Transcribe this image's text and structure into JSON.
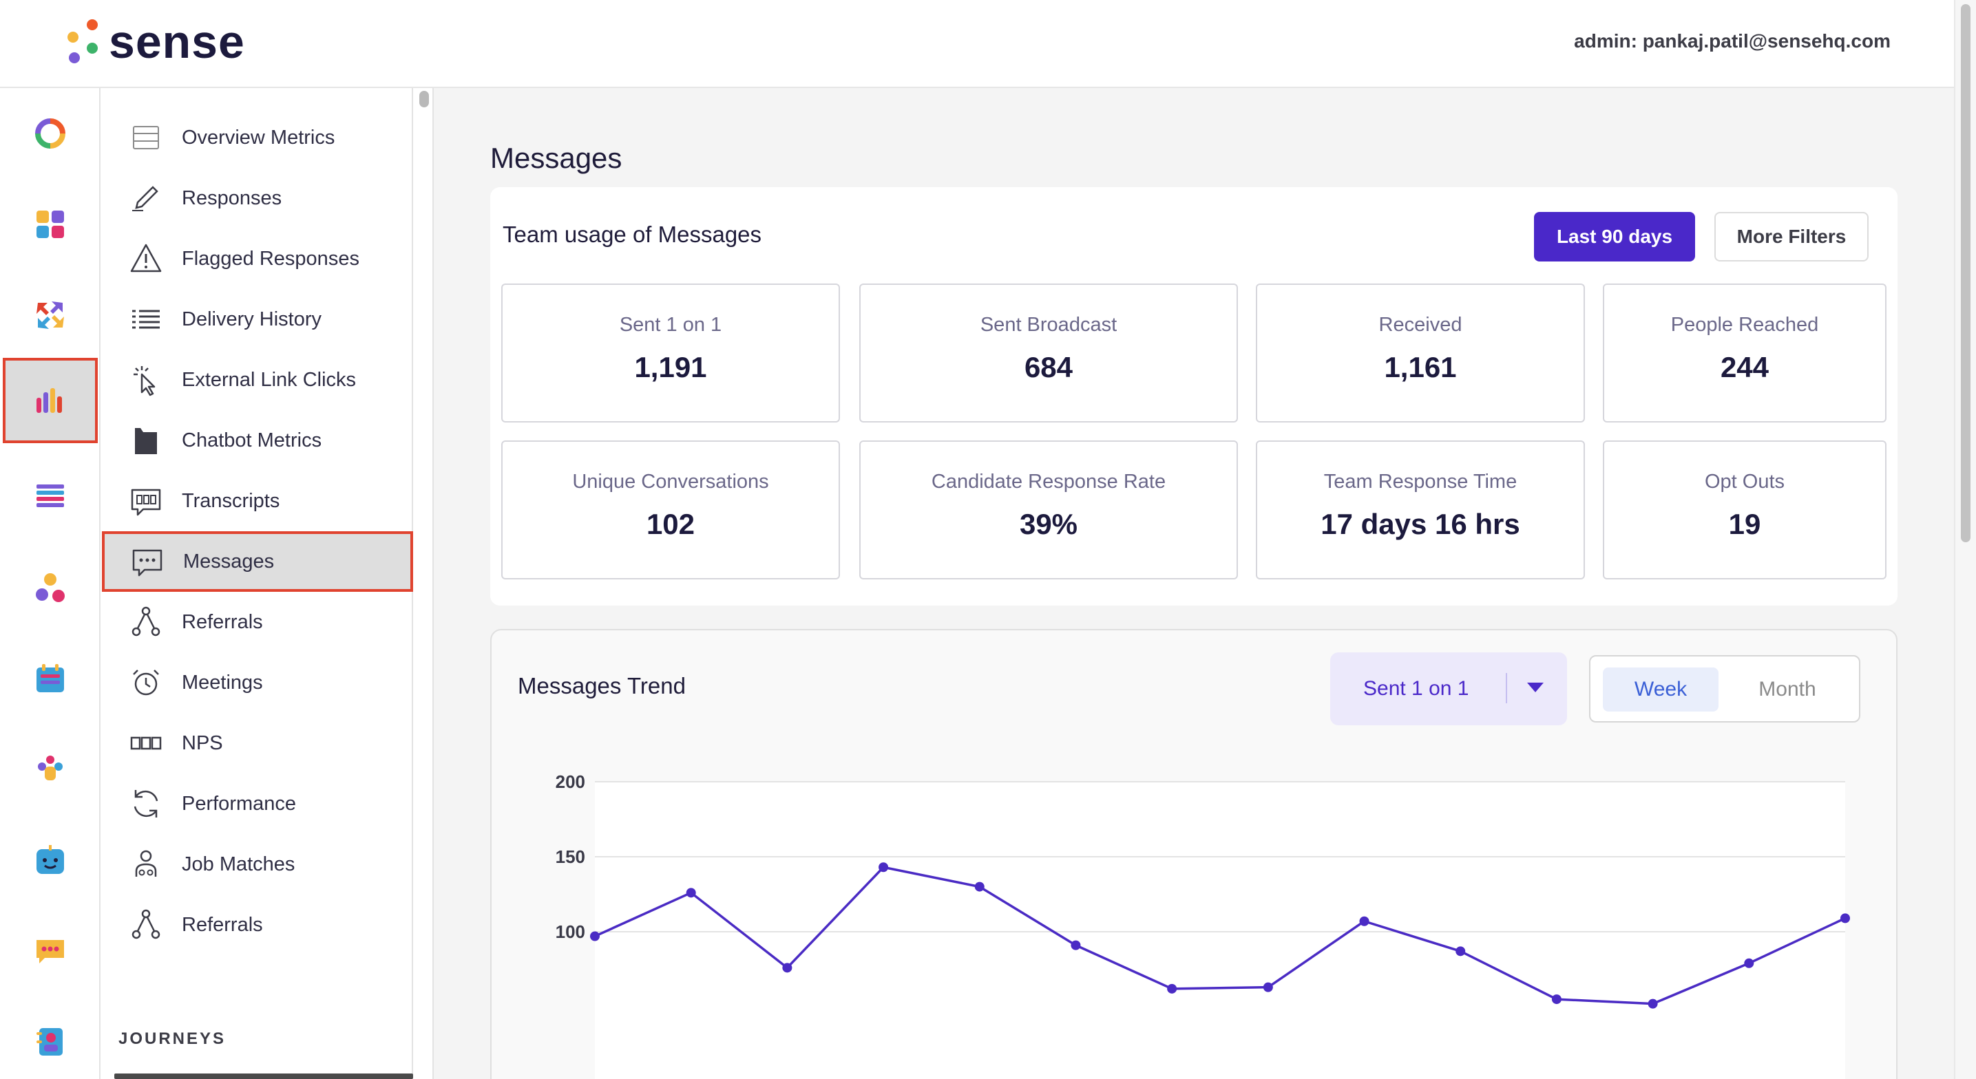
{
  "header": {
    "logo_text": "sense",
    "admin_label": "admin: pankaj.patil@sensehq.com",
    "logo_dot_colors": [
      "#ef5a2a",
      "#f4b63d",
      "#3db36a",
      "#7a5bd6"
    ]
  },
  "rail": {
    "items": [
      {
        "icon": "donut-chart-icon",
        "active": false
      },
      {
        "icon": "apps-grid-icon",
        "active": false
      },
      {
        "icon": "arrows-exchange-icon",
        "active": false
      },
      {
        "icon": "analytics-bars-icon",
        "active": true
      },
      {
        "icon": "list-icon",
        "active": false
      },
      {
        "icon": "people-network-icon",
        "active": false
      },
      {
        "icon": "calendar-icon",
        "active": false
      },
      {
        "icon": "team-icon",
        "active": false
      },
      {
        "icon": "chatbot-icon",
        "active": false
      },
      {
        "icon": "chat-bubble-icon",
        "active": false
      },
      {
        "icon": "contacts-icon",
        "active": false
      }
    ]
  },
  "subnav": {
    "items": [
      {
        "label": "Overview Metrics",
        "icon": "table-icon"
      },
      {
        "label": "Responses",
        "icon": "pencil-icon"
      },
      {
        "label": "Flagged Responses",
        "icon": "warning-icon"
      },
      {
        "label": "Delivery History",
        "icon": "list-lines-icon"
      },
      {
        "label": "External Link Clicks",
        "icon": "click-icon"
      },
      {
        "label": "Chatbot Metrics",
        "icon": "chatbot-icon"
      },
      {
        "label": "Transcripts",
        "icon": "transcript-icon"
      },
      {
        "label": "Messages",
        "icon": "message-icon",
        "active": true
      },
      {
        "label": "Referrals",
        "icon": "referral-icon"
      },
      {
        "label": "Meetings",
        "icon": "alarm-clock-icon"
      },
      {
        "label": "NPS",
        "icon": "nps-icon"
      },
      {
        "label": "Performance",
        "icon": "refresh-icon"
      },
      {
        "label": "Job Matches",
        "icon": "job-match-icon"
      },
      {
        "label": "Referrals",
        "icon": "referral-icon"
      }
    ],
    "section_label": "JOURNEYS"
  },
  "main": {
    "page_title": "Messages",
    "usage_card": {
      "title": "Team usage of Messages",
      "primary_button": "Last 90 days",
      "secondary_button": "More Filters",
      "metrics": [
        {
          "label": "Sent 1 on 1",
          "value": "1,191"
        },
        {
          "label": "Sent Broadcast",
          "value": "684"
        },
        {
          "label": "Received",
          "value": "1,161"
        },
        {
          "label": "People Reached",
          "value": "244"
        },
        {
          "label": "Unique Conversations",
          "value": "102"
        },
        {
          "label": "Candidate Response Rate",
          "value": "39%"
        },
        {
          "label": "Team Response Time",
          "value": "17 days 16 hrs"
        },
        {
          "label": "Opt Outs",
          "value": "19"
        }
      ]
    },
    "trend": {
      "title": "Messages Trend",
      "series_select": "Sent 1 on 1",
      "toggle_week": "Week",
      "toggle_month": "Month"
    }
  },
  "colors": {
    "accent": "#4a28c9",
    "highlight_border": "#e0432f",
    "line": "#4a2bc4"
  },
  "chart_data": {
    "type": "line",
    "series": [
      {
        "values": [
          97,
          126,
          76,
          143,
          130,
          91,
          62,
          63,
          107,
          87,
          55,
          52,
          79,
          109
        ]
      }
    ],
    "y_ticks": [
      "200",
      "150",
      "100"
    ],
    "ylim": [
      0,
      200
    ],
    "grid": true
  }
}
